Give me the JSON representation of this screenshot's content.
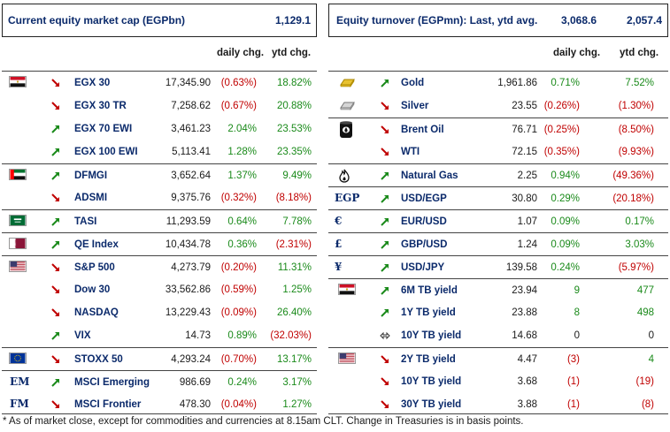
{
  "left_header": {
    "title": "Current equity market cap (EGPbn)",
    "value": "1,129.1"
  },
  "right_header": {
    "title": "Equity turnover (EGPmn): Last, ytd avg.",
    "last": "3,068.6",
    "ytd_avg": "2,057.4"
  },
  "columns": {
    "daily": "daily chg.",
    "ytd": "ytd chg."
  },
  "left_rows": [
    {
      "name": "EGX 30",
      "value": "17,345.90",
      "daily": "(0.63%)",
      "ytd": "18.82%",
      "dir": "down",
      "flag": "egypt-flag",
      "daily_sign": "neg",
      "ytd_sign": "pos"
    },
    {
      "name": "EGX 30 TR",
      "value": "7,258.62",
      "daily": "(0.67%)",
      "ytd": "20.88%",
      "dir": "down",
      "flag": "",
      "daily_sign": "neg",
      "ytd_sign": "pos"
    },
    {
      "name": "EGX 70 EWI",
      "value": "3,461.23",
      "daily": "2.04%",
      "ytd": "23.53%",
      "dir": "up",
      "flag": "",
      "daily_sign": "pos",
      "ytd_sign": "pos"
    },
    {
      "name": "EGX 100 EWI",
      "value": "5,113.41",
      "daily": "1.28%",
      "ytd": "23.35%",
      "dir": "up",
      "flag": "",
      "daily_sign": "pos",
      "ytd_sign": "pos"
    },
    {
      "name": "DFMGI",
      "value": "3,652.64",
      "daily": "1.37%",
      "ytd": "9.49%",
      "dir": "up",
      "flag": "uae-flag",
      "daily_sign": "pos",
      "ytd_sign": "pos"
    },
    {
      "name": "ADSMI",
      "value": "9,375.76",
      "daily": "(0.32%)",
      "ytd": "(8.18%)",
      "dir": "down",
      "flag": "",
      "daily_sign": "neg",
      "ytd_sign": "neg"
    },
    {
      "name": "TASI",
      "value": "11,293.59",
      "daily": "0.64%",
      "ytd": "7.78%",
      "dir": "up",
      "flag": "saudi-flag",
      "daily_sign": "pos",
      "ytd_sign": "pos"
    },
    {
      "name": "QE Index",
      "value": "10,434.78",
      "daily": "0.36%",
      "ytd": "(2.31%)",
      "dir": "up",
      "flag": "qatar-flag",
      "daily_sign": "pos",
      "ytd_sign": "neg"
    },
    {
      "name": "S&P 500",
      "value": "4,273.79",
      "daily": "(0.20%)",
      "ytd": "11.31%",
      "dir": "down",
      "flag": "us-flag",
      "daily_sign": "neg",
      "ytd_sign": "pos"
    },
    {
      "name": "Dow 30",
      "value": "33,562.86",
      "daily": "(0.59%)",
      "ytd": "1.25%",
      "dir": "down",
      "flag": "",
      "daily_sign": "neg",
      "ytd_sign": "pos"
    },
    {
      "name": "NASDAQ",
      "value": "13,229.43",
      "daily": "(0.09%)",
      "ytd": "26.40%",
      "dir": "down",
      "flag": "",
      "daily_sign": "neg",
      "ytd_sign": "pos"
    },
    {
      "name": "VIX",
      "value": "14.73",
      "daily": "0.89%",
      "ytd": "(32.03%)",
      "dir": "up",
      "flag": "",
      "daily_sign": "pos",
      "ytd_sign": "neg"
    },
    {
      "name": "STOXX 50",
      "value": "4,293.24",
      "daily": "(0.70%)",
      "ytd": "13.17%",
      "dir": "down",
      "flag": "eu-flag",
      "daily_sign": "neg",
      "ytd_sign": "pos"
    },
    {
      "name": "MSCI Emerging",
      "value": "986.69",
      "daily": "0.24%",
      "ytd": "3.17%",
      "dir": "up",
      "flag": "",
      "label_icon": "EM",
      "daily_sign": "pos",
      "ytd_sign": "pos"
    },
    {
      "name": "MSCI Frontier",
      "value": "478.30",
      "daily": "(0.04%)",
      "ytd": "1.27%",
      "dir": "down",
      "flag": "",
      "label_icon": "FM",
      "daily_sign": "neg",
      "ytd_sign": "pos"
    }
  ],
  "right_rows": [
    {
      "name": "Gold",
      "value": "1,961.86",
      "daily": "0.71%",
      "ytd": "7.52%",
      "dir": "up",
      "icon": "gold-bar-icon",
      "daily_sign": "pos",
      "ytd_sign": "pos"
    },
    {
      "name": "Silver",
      "value": "23.55",
      "daily": "(0.26%)",
      "ytd": "(1.30%)",
      "dir": "down",
      "icon": "silver-bar-icon",
      "daily_sign": "neg",
      "ytd_sign": "neg"
    },
    {
      "name": "Brent Oil",
      "value": "76.71",
      "daily": "(0.25%)",
      "ytd": "(8.50%)",
      "dir": "down",
      "icon": "oil-barrel-icon",
      "daily_sign": "neg",
      "ytd_sign": "neg"
    },
    {
      "name": "WTI",
      "value": "72.15",
      "daily": "(0.35%)",
      "ytd": "(9.93%)",
      "dir": "down",
      "icon": "",
      "daily_sign": "neg",
      "ytd_sign": "neg"
    },
    {
      "name": "Natural Gas",
      "value": "2.25",
      "daily": "0.94%",
      "ytd": "(49.36%)",
      "dir": "up",
      "icon": "flame-icon",
      "daily_sign": "pos",
      "ytd_sign": "neg"
    },
    {
      "name": "USD/EGP",
      "value": "30.80",
      "daily": "0.29%",
      "ytd": "(20.18%)",
      "dir": "up",
      "icon": "",
      "label_icon": "EGP",
      "daily_sign": "pos",
      "ytd_sign": "neg"
    },
    {
      "name": "EUR/USD",
      "value": "1.07",
      "daily": "0.09%",
      "ytd": "0.17%",
      "dir": "up",
      "icon": "",
      "label_icon": "€",
      "daily_sign": "pos",
      "ytd_sign": "pos"
    },
    {
      "name": "GBP/USD",
      "value": "1.24",
      "daily": "0.09%",
      "ytd": "3.03%",
      "dir": "up",
      "icon": "",
      "label_icon": "£",
      "daily_sign": "pos",
      "ytd_sign": "pos"
    },
    {
      "name": "USD/JPY",
      "value": "139.58",
      "daily": "0.24%",
      "ytd": "(5.97%)",
      "dir": "up",
      "icon": "",
      "label_icon": "¥",
      "daily_sign": "pos",
      "ytd_sign": "neg"
    },
    {
      "name": "6M TB yield",
      "value": "23.94",
      "daily": "9",
      "ytd": "477",
      "dir": "up",
      "icon": "egypt-flag",
      "daily_sign": "pos",
      "ytd_sign": "pos"
    },
    {
      "name": "1Y TB yield",
      "value": "23.88",
      "daily": "8",
      "ytd": "498",
      "dir": "up",
      "icon": "",
      "daily_sign": "pos",
      "ytd_sign": "pos"
    },
    {
      "name": "10Y TB yield",
      "value": "14.68",
      "daily": "0",
      "ytd": "0",
      "dir": "flat",
      "icon": "",
      "daily_sign": "neu",
      "ytd_sign": "neu"
    },
    {
      "name": "2Y TB yield",
      "value": "4.47",
      "daily": "(3)",
      "ytd": "4",
      "dir": "down",
      "icon": "us-flag",
      "daily_sign": "neg",
      "ytd_sign": "pos"
    },
    {
      "name": "10Y TB yield",
      "value": "3.68",
      "daily": "(1)",
      "ytd": "(19)",
      "dir": "down",
      "icon": "",
      "daily_sign": "neg",
      "ytd_sign": "neg"
    },
    {
      "name": "30Y TB yield",
      "value": "3.88",
      "daily": "(1)",
      "ytd": "(8)",
      "dir": "down",
      "icon": "",
      "daily_sign": "neg",
      "ytd_sign": "neg"
    }
  ],
  "footnote": "* As of market close, except for commodities and currencies at 8.15am CLT. Change in Treasuries is in basis points."
}
